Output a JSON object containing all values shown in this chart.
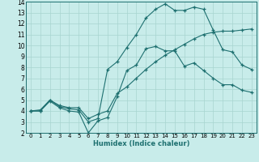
{
  "xlabel": "Humidex (Indice chaleur)",
  "bg_color": "#c8ecea",
  "grid_color": "#a8d4d0",
  "line_color": "#1e7070",
  "xlim": [
    -0.5,
    23.5
  ],
  "ylim": [
    2,
    14
  ],
  "xticks": [
    0,
    1,
    2,
    3,
    4,
    5,
    6,
    7,
    8,
    9,
    10,
    11,
    12,
    13,
    14,
    15,
    16,
    17,
    18,
    19,
    20,
    21,
    22,
    23
  ],
  "yticks": [
    2,
    3,
    4,
    5,
    6,
    7,
    8,
    9,
    10,
    11,
    12,
    13,
    14
  ],
  "line1_x": [
    0,
    1,
    2,
    3,
    4,
    5,
    6,
    7,
    8,
    9,
    10,
    11,
    12,
    13,
    14,
    15,
    16,
    17,
    18,
    19,
    20,
    21,
    22,
    23
  ],
  "line1_y": [
    4.0,
    4.0,
    4.9,
    4.3,
    4.0,
    3.9,
    2.0,
    3.1,
    3.4,
    5.3,
    7.7,
    8.2,
    9.7,
    9.9,
    9.5,
    9.5,
    8.1,
    8.4,
    7.7,
    7.0,
    6.4,
    6.4,
    5.9,
    5.7
  ],
  "line2_x": [
    0,
    1,
    2,
    3,
    4,
    5,
    6,
    7,
    8,
    9,
    10,
    11,
    12,
    13,
    14,
    15,
    16,
    17,
    18,
    19,
    20,
    21,
    22,
    23
  ],
  "line2_y": [
    4.0,
    4.0,
    5.0,
    4.4,
    4.2,
    4.1,
    3.0,
    3.3,
    7.8,
    8.5,
    9.8,
    11.0,
    12.5,
    13.3,
    13.8,
    13.2,
    13.2,
    13.5,
    13.3,
    11.4,
    9.6,
    9.4,
    8.2,
    7.8
  ],
  "line3_x": [
    0,
    1,
    2,
    3,
    4,
    5,
    6,
    7,
    8,
    9,
    10,
    11,
    12,
    13,
    14,
    15,
    16,
    17,
    18,
    19,
    20,
    21,
    22,
    23
  ],
  "line3_y": [
    4.0,
    4.1,
    5.0,
    4.5,
    4.3,
    4.3,
    3.3,
    3.7,
    4.0,
    5.6,
    6.2,
    7.0,
    7.8,
    8.5,
    9.1,
    9.6,
    10.1,
    10.6,
    11.0,
    11.2,
    11.3,
    11.3,
    11.4,
    11.5
  ]
}
